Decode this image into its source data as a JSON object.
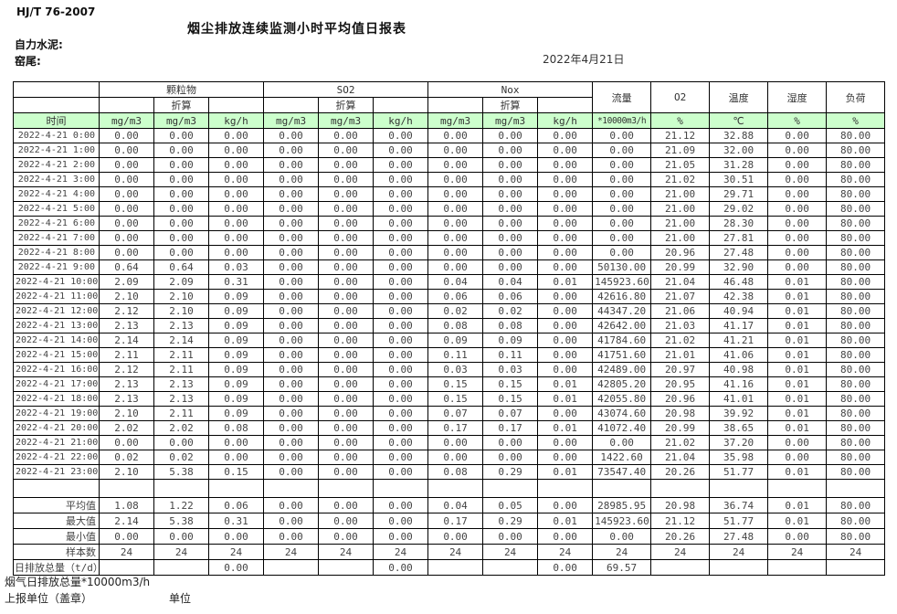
{
  "page": {
    "standard": "HJ/T 76-2007",
    "title": "烟尘排放连续监测小时平均值日报表",
    "company": "自力水泥:",
    "site": "窑尾:",
    "date": "2022年4月21日"
  },
  "colors": {
    "header_bg": "#ccffcc",
    "border": "#000000"
  },
  "table": {
    "time_header": "时间",
    "groups": [
      "颗粒物",
      "SO2",
      "Nox"
    ],
    "subheader": "折算",
    "singles": [
      "流量",
      "O2",
      "温度",
      "湿度",
      "负荷"
    ],
    "units": [
      "mg/m3",
      "mg/m3",
      "kg/h",
      "mg/m3",
      "mg/m3",
      "kg/h",
      "mg/m3",
      "mg/m3",
      "kg/h",
      "*10000m3/h",
      "%",
      "℃",
      "%",
      "%"
    ],
    "rows": [
      {
        "time": "2022-4-21  0:00",
        "values": [
          "0.00",
          "0.00",
          "0.00",
          "0.00",
          "0.00",
          "0.00",
          "0.00",
          "0.00",
          "0.00",
          "0.00",
          "21.12",
          "32.88",
          "0.00",
          "80.00"
        ]
      },
      {
        "time": "2022-4-21  1:00",
        "values": [
          "0.00",
          "0.00",
          "0.00",
          "0.00",
          "0.00",
          "0.00",
          "0.00",
          "0.00",
          "0.00",
          "0.00",
          "21.09",
          "32.00",
          "0.00",
          "80.00"
        ]
      },
      {
        "time": "2022-4-21  2:00",
        "values": [
          "0.00",
          "0.00",
          "0.00",
          "0.00",
          "0.00",
          "0.00",
          "0.00",
          "0.00",
          "0.00",
          "0.00",
          "21.05",
          "31.28",
          "0.00",
          "80.00"
        ]
      },
      {
        "time": "2022-4-21  3:00",
        "values": [
          "0.00",
          "0.00",
          "0.00",
          "0.00",
          "0.00",
          "0.00",
          "0.00",
          "0.00",
          "0.00",
          "0.00",
          "21.02",
          "30.51",
          "0.00",
          "80.00"
        ]
      },
      {
        "time": "2022-4-21  4:00",
        "values": [
          "0.00",
          "0.00",
          "0.00",
          "0.00",
          "0.00",
          "0.00",
          "0.00",
          "0.00",
          "0.00",
          "0.00",
          "21.00",
          "29.71",
          "0.00",
          "80.00"
        ]
      },
      {
        "time": "2022-4-21  5:00",
        "values": [
          "0.00",
          "0.00",
          "0.00",
          "0.00",
          "0.00",
          "0.00",
          "0.00",
          "0.00",
          "0.00",
          "0.00",
          "21.00",
          "29.02",
          "0.00",
          "80.00"
        ]
      },
      {
        "time": "2022-4-21  6:00",
        "values": [
          "0.00",
          "0.00",
          "0.00",
          "0.00",
          "0.00",
          "0.00",
          "0.00",
          "0.00",
          "0.00",
          "0.00",
          "21.00",
          "28.30",
          "0.00",
          "80.00"
        ]
      },
      {
        "time": "2022-4-21  7:00",
        "values": [
          "0.00",
          "0.00",
          "0.00",
          "0.00",
          "0.00",
          "0.00",
          "0.00",
          "0.00",
          "0.00",
          "0.00",
          "21.00",
          "27.81",
          "0.00",
          "80.00"
        ]
      },
      {
        "time": "2022-4-21  8:00",
        "values": [
          "0.00",
          "0.00",
          "0.00",
          "0.00",
          "0.00",
          "0.00",
          "0.00",
          "0.00",
          "0.00",
          "0.00",
          "20.96",
          "27.48",
          "0.00",
          "80.00"
        ]
      },
      {
        "time": "2022-4-21  9:00",
        "values": [
          "0.64",
          "0.64",
          "0.03",
          "0.00",
          "0.00",
          "0.00",
          "0.00",
          "0.00",
          "0.00",
          "50130.00",
          "20.99",
          "32.90",
          "0.00",
          "80.00"
        ]
      },
      {
        "time": "2022-4-21 10:00",
        "values": [
          "2.09",
          "2.09",
          "0.31",
          "0.00",
          "0.00",
          "0.00",
          "0.04",
          "0.04",
          "0.01",
          "145923.60",
          "21.04",
          "46.48",
          "0.01",
          "80.00"
        ]
      },
      {
        "time": "2022-4-21 11:00",
        "values": [
          "2.10",
          "2.10",
          "0.09",
          "0.00",
          "0.00",
          "0.00",
          "0.06",
          "0.06",
          "0.00",
          "42616.80",
          "21.07",
          "42.38",
          "0.01",
          "80.00"
        ]
      },
      {
        "time": "2022-4-21 12:00",
        "values": [
          "2.12",
          "2.10",
          "0.09",
          "0.00",
          "0.00",
          "0.00",
          "0.02",
          "0.02",
          "0.00",
          "44347.20",
          "21.06",
          "40.94",
          "0.01",
          "80.00"
        ]
      },
      {
        "time": "2022-4-21 13:00",
        "values": [
          "2.13",
          "2.13",
          "0.09",
          "0.00",
          "0.00",
          "0.00",
          "0.08",
          "0.08",
          "0.00",
          "42642.00",
          "21.03",
          "41.17",
          "0.01",
          "80.00"
        ]
      },
      {
        "time": "2022-4-21 14:00",
        "values": [
          "2.14",
          "2.14",
          "0.09",
          "0.00",
          "0.00",
          "0.00",
          "0.09",
          "0.09",
          "0.00",
          "41784.60",
          "21.02",
          "41.21",
          "0.01",
          "80.00"
        ]
      },
      {
        "time": "2022-4-21 15:00",
        "values": [
          "2.11",
          "2.11",
          "0.09",
          "0.00",
          "0.00",
          "0.00",
          "0.11",
          "0.11",
          "0.00",
          "41751.60",
          "21.01",
          "41.06",
          "0.01",
          "80.00"
        ]
      },
      {
        "time": "2022-4-21 16:00",
        "values": [
          "2.12",
          "2.11",
          "0.09",
          "0.00",
          "0.00",
          "0.00",
          "0.03",
          "0.03",
          "0.00",
          "42489.00",
          "20.97",
          "40.98",
          "0.01",
          "80.00"
        ]
      },
      {
        "time": "2022-4-21 17:00",
        "values": [
          "2.13",
          "2.13",
          "0.09",
          "0.00",
          "0.00",
          "0.00",
          "0.15",
          "0.15",
          "0.01",
          "42805.20",
          "20.95",
          "41.16",
          "0.01",
          "80.00"
        ]
      },
      {
        "time": "2022-4-21 18:00",
        "values": [
          "2.13",
          "2.13",
          "0.09",
          "0.00",
          "0.00",
          "0.00",
          "0.15",
          "0.15",
          "0.01",
          "42055.80",
          "20.96",
          "41.01",
          "0.01",
          "80.00"
        ]
      },
      {
        "time": "2022-4-21 19:00",
        "values": [
          "2.10",
          "2.11",
          "0.09",
          "0.00",
          "0.00",
          "0.00",
          "0.07",
          "0.07",
          "0.00",
          "43074.60",
          "20.98",
          "39.92",
          "0.01",
          "80.00"
        ]
      },
      {
        "time": "2022-4-21 20:00",
        "values": [
          "2.02",
          "2.02",
          "0.08",
          "0.00",
          "0.00",
          "0.00",
          "0.17",
          "0.17",
          "0.01",
          "41072.40",
          "20.99",
          "38.65",
          "0.01",
          "80.00"
        ]
      },
      {
        "time": "2022-4-21 21:00",
        "values": [
          "0.00",
          "0.00",
          "0.00",
          "0.00",
          "0.00",
          "0.00",
          "0.00",
          "0.00",
          "0.00",
          "0.00",
          "21.02",
          "37.20",
          "0.00",
          "80.00"
        ]
      },
      {
        "time": "2022-4-21 22:00",
        "values": [
          "0.02",
          "0.02",
          "0.00",
          "0.00",
          "0.00",
          "0.00",
          "0.00",
          "0.00",
          "0.00",
          "1422.60",
          "21.04",
          "35.98",
          "0.00",
          "80.00"
        ]
      },
      {
        "time": "2022-4-21 23:00",
        "values": [
          "2.10",
          "5.38",
          "0.15",
          "0.00",
          "0.00",
          "0.00",
          "0.08",
          "0.29",
          "0.01",
          "73547.40",
          "20.26",
          "51.77",
          "0.01",
          "80.00"
        ]
      }
    ],
    "summary": [
      {
        "label": "平均值",
        "values": [
          "1.08",
          "1.22",
          "0.06",
          "0.00",
          "0.00",
          "0.00",
          "0.04",
          "0.05",
          "0.00",
          "28985.95",
          "20.98",
          "36.74",
          "0.01",
          "80.00"
        ]
      },
      {
        "label": "最大值",
        "values": [
          "2.14",
          "5.38",
          "0.31",
          "0.00",
          "0.00",
          "0.00",
          "0.17",
          "0.29",
          "0.01",
          "145923.60",
          "21.12",
          "51.77",
          "0.01",
          "80.00"
        ]
      },
      {
        "label": "最小值",
        "values": [
          "0.00",
          "0.00",
          "0.00",
          "0.00",
          "0.00",
          "0.00",
          "0.00",
          "0.00",
          "0.00",
          "0.00",
          "20.26",
          "27.48",
          "0.00",
          "80.00"
        ]
      },
      {
        "label": "样本数",
        "values": [
          "24",
          "24",
          "24",
          "24",
          "24",
          "24",
          "24",
          "24",
          "24",
          "24",
          "24",
          "24",
          "24",
          "24"
        ]
      },
      {
        "label": "日排放总量（t/d）",
        "align": "left",
        "values": [
          "",
          "",
          "0.00",
          "",
          "",
          "0.00",
          "",
          "",
          "0.00",
          "69.57",
          "",
          "",
          "",
          ""
        ]
      }
    ]
  },
  "footer": {
    "total_note": "烟气日排放总量*10000m3/h",
    "report_unit": "上报单位（盖章）",
    "unit_label": "单位"
  }
}
